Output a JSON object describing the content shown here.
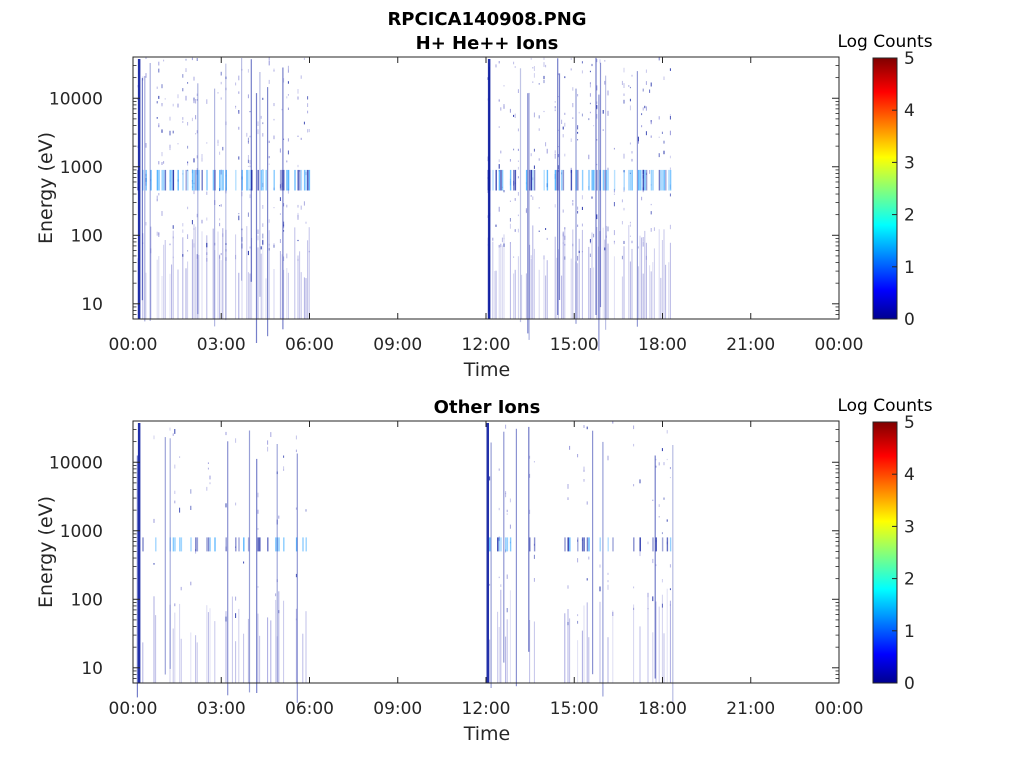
{
  "figure": {
    "title": "RPCICA140908.PNG"
  },
  "colors": {
    "trace_dark": "#0a1aa0",
    "trace_light": "#8c8cd6",
    "trace_cyan": "#38a8ff",
    "axis": "#262626"
  },
  "chart_data": [
    {
      "type": "heatmap",
      "title": "H+ He++ Ions",
      "xlabel": "Time",
      "ylabel": "Energy (eV)",
      "x_ticks": [
        "00:00",
        "03:00",
        "06:00",
        "09:00",
        "12:00",
        "15:00",
        "18:00",
        "21:00",
        "00:00"
      ],
      "x_range_hours": [
        0,
        24
      ],
      "y_scale": "log",
      "y_ticks": [
        "10",
        "100",
        "1000",
        "10000"
      ],
      "y_range": [
        6,
        40000
      ],
      "colorbar": {
        "title": "Log Counts",
        "ticks": [
          "0",
          "1",
          "2",
          "3",
          "4",
          "5"
        ],
        "range": [
          0,
          5
        ],
        "colormap": "jet"
      },
      "active_intervals_hours": [
        [
          0.1,
          6.0
        ],
        [
          12.05,
          18.35
        ]
      ],
      "dominant_band_ev": [
        450,
        900
      ],
      "band_level": 1.6,
      "burst_times_hours": [
        0.2,
        12.1
      ]
    },
    {
      "type": "heatmap",
      "title": "Other Ions",
      "xlabel": "Time",
      "ylabel": "Energy (eV)",
      "x_ticks": [
        "00:00",
        "03:00",
        "06:00",
        "09:00",
        "12:00",
        "15:00",
        "18:00",
        "21:00",
        "00:00"
      ],
      "x_range_hours": [
        0,
        24
      ],
      "y_scale": "log",
      "y_ticks": [
        "10",
        "100",
        "1000",
        "10000"
      ],
      "y_range": [
        6,
        40000
      ],
      "colorbar": {
        "title": "Log Counts",
        "ticks": [
          "0",
          "1",
          "2",
          "3",
          "4",
          "5"
        ],
        "range": [
          0,
          5
        ],
        "colormap": "jet"
      },
      "active_intervals_hours": [
        [
          0.1,
          6.0
        ],
        [
          12.05,
          18.35
        ]
      ],
      "dominant_band_ev": [
        500,
        800
      ],
      "band_level": 0.9,
      "burst_times_hours": [
        0.2,
        12.05
      ]
    }
  ]
}
